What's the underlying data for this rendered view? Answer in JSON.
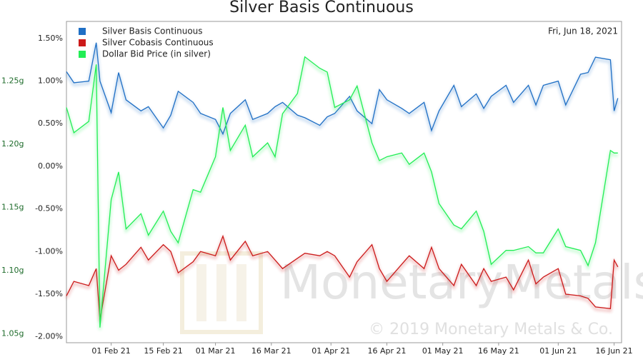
{
  "chart_data": {
    "type": "line",
    "title": "Silver Basis Continuous",
    "date_label": "Fri, Jun 18, 2021",
    "watermark": "MonetaryMetals",
    "copyright": "© 2019 Monetary Metals & Co.",
    "legend": "top-left",
    "x": [
      "2021-01-20",
      "2021-01-22",
      "2021-01-26",
      "2021-01-28",
      "2021-01-29",
      "2021-02-01",
      "2021-02-03",
      "2021-02-05",
      "2021-02-09",
      "2021-02-11",
      "2021-02-15",
      "2021-02-17",
      "2021-02-19",
      "2021-02-23",
      "2021-02-25",
      "2021-03-01",
      "2021-03-03",
      "2021-03-05",
      "2021-03-09",
      "2021-03-11",
      "2021-03-15",
      "2021-03-17",
      "2021-03-19",
      "2021-03-23",
      "2021-03-25",
      "2021-03-29",
      "2021-03-31",
      "2021-04-02",
      "2021-04-06",
      "2021-04-08",
      "2021-04-12",
      "2021-04-14",
      "2021-04-16",
      "2021-04-20",
      "2021-04-22",
      "2021-04-26",
      "2021-04-28",
      "2021-04-30",
      "2021-05-04",
      "2021-05-06",
      "2021-05-10",
      "2021-05-12",
      "2021-05-14",
      "2021-05-18",
      "2021-05-20",
      "2021-05-24",
      "2021-05-26",
      "2021-05-28",
      "2021-06-01",
      "2021-06-03",
      "2021-06-07",
      "2021-06-09",
      "2021-06-11",
      "2021-06-15",
      "2021-06-16",
      "2021-06-17"
    ],
    "xlim": [
      "2021-01-20",
      "2021-06-18"
    ],
    "xticks": [
      {
        "value": "2021-02-01",
        "label": "01 Feb 21"
      },
      {
        "value": "2021-02-15",
        "label": "15 Feb 21"
      },
      {
        "value": "2021-03-01",
        "label": "01 Mar 21"
      },
      {
        "value": "2021-03-16",
        "label": "16 Mar 21"
      },
      {
        "value": "2021-04-01",
        "label": "01 Apr 21"
      },
      {
        "value": "2021-04-16",
        "label": "16 Apr 21"
      },
      {
        "value": "2021-05-01",
        "label": "01 May 21"
      },
      {
        "value": "2021-05-16",
        "label": "16 May 21"
      },
      {
        "value": "2021-06-01",
        "label": "01 Jun 21"
      },
      {
        "value": "2021-06-16",
        "label": "16 Jun 21"
      }
    ],
    "ylim": [
      -2.07,
      1.7
    ],
    "yticks": [
      {
        "value": 1.5,
        "label": "1.50%"
      },
      {
        "value": 1.0,
        "label": "1.00%"
      },
      {
        "value": 0.5,
        "label": "0.50%"
      },
      {
        "value": 0,
        "label": "0.00%"
      },
      {
        "value": -0.5,
        "label": "-0.50%"
      },
      {
        "value": -1.0,
        "label": "-1.00%"
      },
      {
        "value": -1.5,
        "label": "-1.50%"
      },
      {
        "value": -2.0,
        "label": "-2.00%"
      }
    ],
    "y2lim": [
      1.043,
      1.297
    ],
    "y2ticks": [
      {
        "value": 1.25,
        "label": "1.25g"
      },
      {
        "value": 1.2,
        "label": "1.20g"
      },
      {
        "value": 1.15,
        "label": "1.15g"
      },
      {
        "value": 1.1,
        "label": "1.10g"
      },
      {
        "value": 1.05,
        "label": "1.05g"
      }
    ],
    "series": [
      {
        "name": "Silver Basis Continuous",
        "color": "#1f6fc5",
        "values": [
          1.11,
          0.98,
          1.0,
          1.45,
          1.0,
          0.63,
          1.1,
          0.78,
          0.65,
          0.7,
          0.45,
          0.6,
          0.88,
          0.75,
          0.62,
          0.55,
          0.38,
          0.62,
          0.78,
          0.55,
          0.62,
          0.7,
          0.75,
          0.6,
          0.57,
          0.48,
          0.58,
          0.62,
          0.82,
          0.65,
          0.5,
          0.9,
          0.78,
          0.68,
          0.62,
          0.75,
          0.42,
          0.65,
          0.95,
          0.7,
          0.85,
          0.68,
          0.82,
          0.95,
          0.75,
          0.95,
          0.72,
          0.95,
          1.0,
          0.72,
          1.08,
          1.1,
          1.28,
          1.25,
          0.65,
          0.8
        ]
      },
      {
        "name": "Silver Cobasis Continuous",
        "color": "#cc1a1a",
        "values": [
          -1.52,
          -1.35,
          -1.4,
          -1.2,
          -1.8,
          -1.05,
          -1.22,
          -1.15,
          -0.95,
          -1.1,
          -0.92,
          -1.0,
          -1.25,
          -1.12,
          -1.0,
          -1.05,
          -0.82,
          -1.1,
          -0.88,
          -1.05,
          -1.0,
          -1.1,
          -1.2,
          -1.08,
          -1.02,
          -1.05,
          -1.0,
          -1.05,
          -1.3,
          -1.12,
          -0.92,
          -1.2,
          -1.35,
          -1.15,
          -1.05,
          -1.2,
          -0.95,
          -1.2,
          -1.4,
          -1.15,
          -1.4,
          -1.2,
          -1.35,
          -1.3,
          -1.45,
          -1.1,
          -1.38,
          -1.3,
          -1.2,
          -1.5,
          -1.52,
          -1.55,
          -1.65,
          -1.67,
          -1.1,
          -1.18
        ]
      },
      {
        "name": "Dollar Bid Price (in silver)",
        "color": "#22ee55",
        "axis": "y2",
        "values": [
          1.229,
          1.209,
          1.218,
          1.263,
          1.055,
          1.156,
          1.178,
          1.133,
          1.145,
          1.128,
          1.147,
          1.131,
          1.122,
          1.164,
          1.162,
          1.19,
          1.229,
          1.195,
          1.215,
          1.19,
          1.201,
          1.19,
          1.224,
          1.24,
          1.269,
          1.26,
          1.257,
          1.229,
          1.235,
          1.246,
          1.201,
          1.187,
          1.19,
          1.193,
          1.184,
          1.193,
          1.178,
          1.153,
          1.136,
          1.133,
          1.147,
          1.131,
          1.105,
          1.116,
          1.116,
          1.119,
          1.114,
          1.114,
          1.133,
          1.119,
          1.116,
          1.104,
          1.122,
          1.195,
          1.193,
          1.193
        ]
      }
    ]
  }
}
